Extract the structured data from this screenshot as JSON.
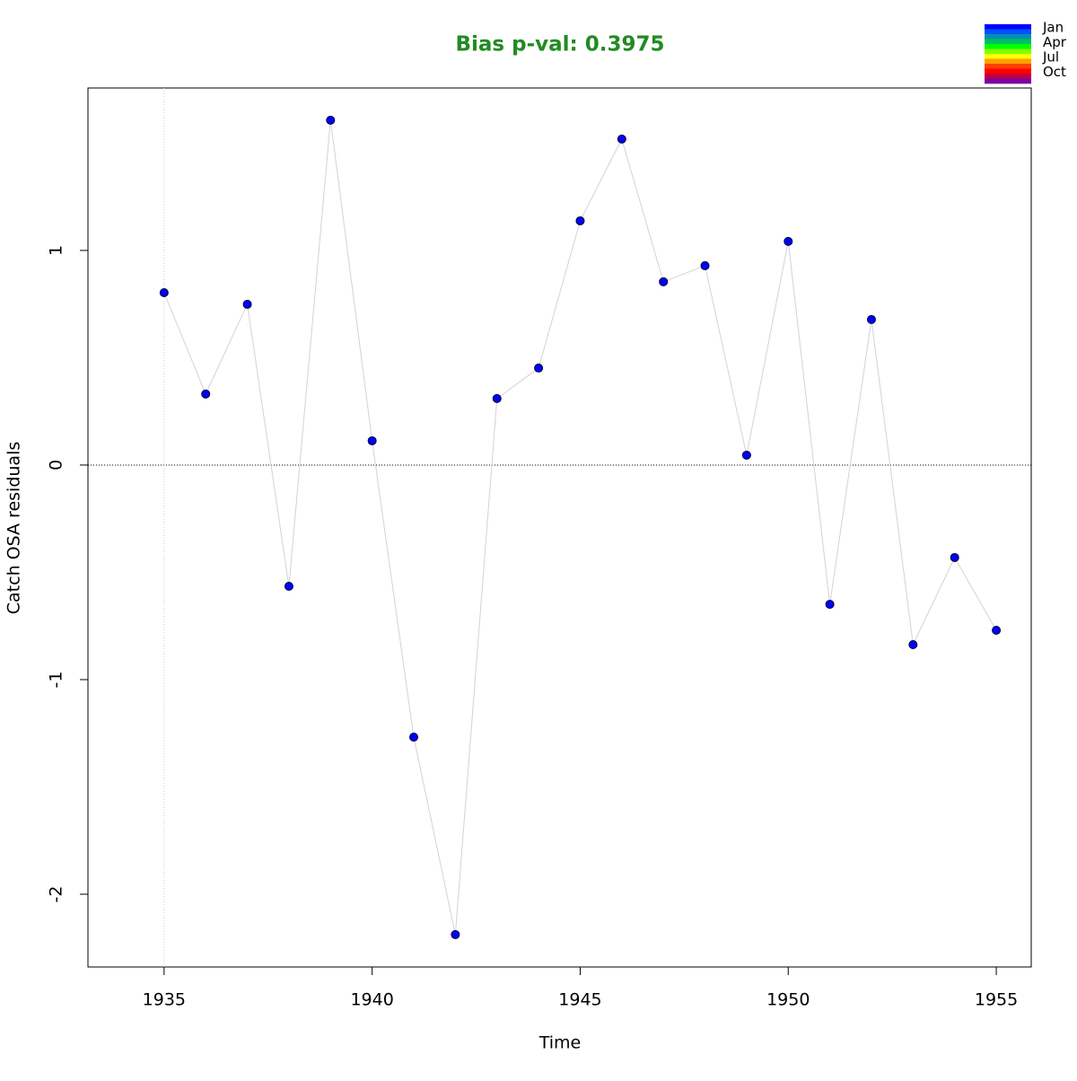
{
  "chart_data": {
    "type": "line",
    "title": "Bias p-val: 0.3975",
    "title_color": "#228B22",
    "xlabel": "Time",
    "ylabel": "Catch OSA residuals",
    "x": [
      1935,
      1936,
      1937,
      1938,
      1939,
      1940,
      1941,
      1942,
      1943,
      1944,
      1945,
      1946,
      1947,
      1948,
      1949,
      1950,
      1951,
      1952,
      1953,
      1954,
      1955
    ],
    "series": [
      {
        "color": "#0000FF",
        "line_color": "#d3d3d3",
        "values": [
          0.803,
          0.331,
          0.749,
          -0.565,
          1.607,
          0.113,
          -1.268,
          -2.188,
          0.31,
          0.452,
          1.138,
          1.519,
          0.854,
          0.929,
          0.046,
          1.042,
          -0.649,
          0.678,
          -0.837,
          -0.431,
          -0.77
        ]
      }
    ],
    "xlim": [
      1933.17,
      1955.84
    ],
    "ylim": [
      -2.339,
      1.757
    ],
    "xticks": [
      1935,
      1940,
      1945,
      1950,
      1955
    ],
    "yticks": [
      -2,
      -1,
      0,
      1
    ],
    "hline": 0,
    "vline": 1935,
    "legend": {
      "labels": [
        "Jan",
        "Apr",
        "Jul",
        "Oct"
      ],
      "colors": [
        "#0000FF",
        "#0050FF",
        "#0090B0",
        "#00C060",
        "#00FF00",
        "#80FF00",
        "#FFFF00",
        "#FFA000",
        "#FF4000",
        "#FF0000",
        "#C00040",
        "#8000A0"
      ]
    }
  }
}
